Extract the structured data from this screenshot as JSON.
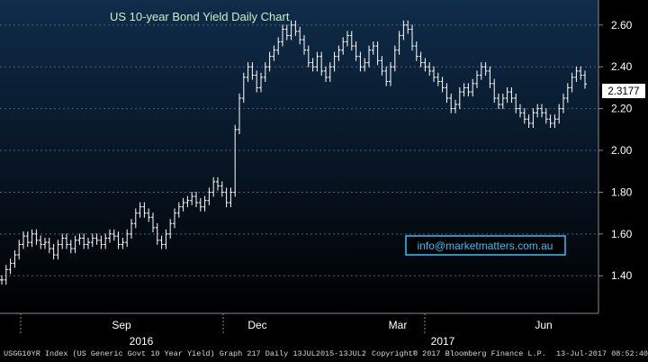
{
  "chart_data": {
    "type": "line",
    "title": "US 10-year Bond Yield Daily Chart",
    "ylim": [
      1.22,
      2.72
    ],
    "y_ticks": [
      "1.40",
      "1.60",
      "1.80",
      "2.00",
      "2.20",
      "2.40",
      "2.60"
    ],
    "x_month_labels": [
      "Sep",
      "Dec",
      "Mar",
      "Jun"
    ],
    "x_year_labels": [
      "2016",
      "2017"
    ],
    "last_value_label": "2.3177",
    "grid": true,
    "series": [
      {
        "values": [
          1.38,
          1.43,
          1.46,
          1.5,
          1.55,
          1.59,
          1.56,
          1.6,
          1.57,
          1.55,
          1.56,
          1.53,
          1.5,
          1.55,
          1.58,
          1.55,
          1.53,
          1.57,
          1.58,
          1.55,
          1.56,
          1.58,
          1.57,
          1.55,
          1.58,
          1.6,
          1.59,
          1.55,
          1.56,
          1.6,
          1.65,
          1.7,
          1.73,
          1.7,
          1.68,
          1.63,
          1.57,
          1.55,
          1.6,
          1.65,
          1.7,
          1.73,
          1.75,
          1.76,
          1.78,
          1.75,
          1.73,
          1.76,
          1.8,
          1.85,
          1.83,
          1.8,
          1.75,
          1.8,
          2.1,
          2.25,
          2.35,
          2.4,
          2.36,
          2.3,
          2.35,
          2.4,
          2.45,
          2.48,
          2.52,
          2.58,
          2.55,
          2.6,
          2.57,
          2.53,
          2.48,
          2.42,
          2.4,
          2.45,
          2.38,
          2.35,
          2.4,
          2.45,
          2.48,
          2.52,
          2.55,
          2.5,
          2.45,
          2.4,
          2.42,
          2.48,
          2.5,
          2.43,
          2.38,
          2.33,
          2.4,
          2.48,
          2.55,
          2.6,
          2.58,
          2.5,
          2.45,
          2.42,
          2.4,
          2.38,
          2.35,
          2.33,
          2.3,
          2.25,
          2.2,
          2.22,
          2.28,
          2.3,
          2.28,
          2.32,
          2.36,
          2.4,
          2.38,
          2.32,
          2.25,
          2.22,
          2.25,
          2.28,
          2.25,
          2.2,
          2.18,
          2.15,
          2.13,
          2.18,
          2.2,
          2.18,
          2.15,
          2.13,
          2.15,
          2.2,
          2.25,
          2.3,
          2.35,
          2.38,
          2.36,
          2.3177
        ]
      }
    ]
  },
  "contact": "info@marketmatters.com.au",
  "footer": {
    "left": "USGG10YR Index (US Generic Govt 10 Year Yield) Graph 217  Daily 13JUL2015-13JUL2",
    "middle": "Copyright® 2017 Bloomberg Finance L.P.",
    "right": "13-Jul-2017 08:52:40"
  },
  "colors": {
    "background": "#000000",
    "plot_gradient_top": "#0f2c4a",
    "plot_gradient_bottom": "#000000",
    "price_bars": "#ffffff",
    "title_text": "#c8f0c8",
    "last_value_box": "#ffffff",
    "contact_box": "#2ec4ff"
  }
}
